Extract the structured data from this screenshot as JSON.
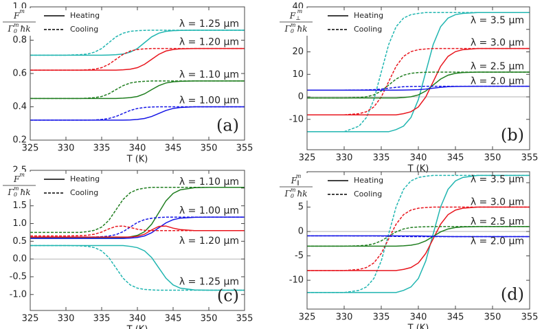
{
  "chart_data": [
    {
      "type": "line",
      "panel": "(a)",
      "xlabel": "T (K)",
      "ylabel": {
        "num_base": "F",
        "num_sup": "m",
        "den_base": "Γ",
        "den_sub": "0",
        "den_sup": "m",
        "den_rest": "ħk"
      },
      "legend": [
        "Heating",
        "Cooling"
      ],
      "zero_line": false,
      "xlim": [
        325,
        355
      ],
      "xticks": [
        325,
        330,
        335,
        340,
        345,
        350,
        355
      ],
      "ylim": [
        0.2,
        1.0
      ],
      "yticks": [
        0.2,
        0.4,
        0.6,
        0.8,
        {
          "value": 1.0,
          "label": "1.0"
        }
      ],
      "x": [
        325,
        330,
        332,
        333,
        334,
        335,
        336,
        337,
        338,
        339,
        340,
        341,
        342,
        343,
        344,
        345,
        346,
        348,
        350,
        355
      ],
      "series": [
        {
          "name": "λ = 1.25 μm",
          "color": "#1fb5b0",
          "heating": [
            0.71,
            0.71,
            0.71,
            0.71,
            0.71,
            0.71,
            0.711,
            0.713,
            0.717,
            0.728,
            0.75,
            0.785,
            0.82,
            0.842,
            0.853,
            0.857,
            0.859,
            0.86,
            0.86,
            0.86
          ],
          "cooling": [
            0.71,
            0.71,
            0.713,
            0.717,
            0.728,
            0.75,
            0.785,
            0.82,
            0.842,
            0.853,
            0.857,
            0.859,
            0.86,
            0.86,
            0.86,
            0.86,
            0.86,
            0.86,
            0.86,
            0.86
          ]
        },
        {
          "name": "λ = 1.20 μm",
          "color": "#e8141c",
          "heating": [
            0.62,
            0.62,
            0.62,
            0.62,
            0.62,
            0.62,
            0.62,
            0.62,
            0.622,
            0.626,
            0.635,
            0.655,
            0.685,
            0.715,
            0.735,
            0.744,
            0.748,
            0.75,
            0.75,
            0.75
          ],
          "cooling": [
            0.62,
            0.62,
            0.62,
            0.622,
            0.626,
            0.635,
            0.655,
            0.685,
            0.715,
            0.735,
            0.744,
            0.748,
            0.75,
            0.75,
            0.75,
            0.75,
            0.75,
            0.75,
            0.75,
            0.75
          ]
        },
        {
          "name": "λ = 1.10 μm",
          "color": "#1e7d1e",
          "heating": [
            0.45,
            0.45,
            0.45,
            0.45,
            0.45,
            0.45,
            0.45,
            0.45,
            0.452,
            0.455,
            0.462,
            0.478,
            0.503,
            0.527,
            0.543,
            0.55,
            0.553,
            0.555,
            0.555,
            0.555
          ],
          "cooling": [
            0.45,
            0.45,
            0.45,
            0.452,
            0.455,
            0.462,
            0.478,
            0.503,
            0.527,
            0.543,
            0.55,
            0.553,
            0.555,
            0.555,
            0.555,
            0.555,
            0.555,
            0.555,
            0.555,
            0.555
          ]
        },
        {
          "name": "λ = 1.00 μm",
          "color": "#1414e6",
          "heating": [
            0.32,
            0.32,
            0.32,
            0.32,
            0.32,
            0.32,
            0.32,
            0.32,
            0.32,
            0.321,
            0.324,
            0.33,
            0.342,
            0.36,
            0.378,
            0.39,
            0.396,
            0.4,
            0.4,
            0.4
          ],
          "cooling": [
            0.32,
            0.32,
            0.32,
            0.32,
            0.321,
            0.324,
            0.33,
            0.342,
            0.36,
            0.378,
            0.39,
            0.396,
            0.399,
            0.4,
            0.4,
            0.4,
            0.4,
            0.4,
            0.4,
            0.4
          ]
        }
      ]
    },
    {
      "type": "line",
      "panel": "(b)",
      "xlabel": "T (K)",
      "ylabel": {
        "num_base": "F",
        "num_sup": "m",
        "num_sub": "⊥",
        "den_base": "Γ",
        "den_sub": "0",
        "den_sup": "m",
        "den_rest": "ħk"
      },
      "legend": [
        "Heating",
        "Cooling"
      ],
      "zero_line": true,
      "xlim": [
        325,
        355
      ],
      "xticks": [
        325,
        330,
        335,
        340,
        345,
        350,
        355
      ],
      "ylim": [
        -23.5,
        40
      ],
      "yticks": [
        -10,
        0,
        10,
        20,
        30,
        40
      ],
      "x": [
        325,
        330,
        332,
        333,
        334,
        335,
        336,
        337,
        338,
        339,
        340,
        341,
        342,
        343,
        344,
        345,
        346,
        348,
        350,
        355
      ],
      "series": [
        {
          "name": "λ = 3.5 μm",
          "color": "#1fb5b0",
          "heating": [
            -15.5,
            -15.5,
            -15.5,
            -15.5,
            -15.5,
            -15.5,
            -15.5,
            -14.55,
            -13.01,
            -9.19,
            -1.24,
            11,
            23.24,
            31.19,
            35.01,
            36.55,
            37.1,
            37.5,
            37.5,
            37.5
          ],
          "cooling": [
            -15.5,
            -15.5,
            -13.01,
            -9.19,
            -1.24,
            11,
            23.24,
            31.19,
            35.01,
            36.55,
            37.1,
            37.5,
            37.5,
            37.5,
            37.5,
            37.5,
            37.5,
            37.5,
            37.5,
            37.5
          ]
        },
        {
          "name": "λ = 3.0 μm",
          "color": "#e8141c",
          "heating": [
            -8,
            -8,
            -8,
            -8,
            -8,
            -8,
            -8,
            -8,
            -7.47,
            -6.61,
            -4.49,
            -0.06,
            6.75,
            13.56,
            17.99,
            20.11,
            20.97,
            21.5,
            21.5,
            21.5
          ],
          "cooling": [
            -8,
            -8,
            -7.47,
            -6.61,
            -4.49,
            -0.06,
            6.75,
            13.56,
            17.99,
            20.11,
            20.97,
            21.29,
            21.5,
            21.5,
            21.5,
            21.5,
            21.5,
            21.5,
            21.5,
            21.5
          ]
        },
        {
          "name": "λ = 2.5 μm",
          "color": "#1e7d1e",
          "heating": [
            -0.5,
            -0.5,
            -0.5,
            -0.5,
            -0.5,
            -0.5,
            -0.5,
            -0.5,
            -0.29,
            0.04,
            0.87,
            2.59,
            5.25,
            7.91,
            9.63,
            10.46,
            10.79,
            11,
            11,
            11
          ],
          "cooling": [
            -0.5,
            -0.5,
            -0.29,
            0.04,
            0.87,
            2.59,
            5.25,
            7.91,
            9.63,
            10.46,
            10.79,
            10.92,
            11,
            11,
            11,
            11,
            11,
            11,
            11,
            11
          ]
        },
        {
          "name": "λ = 2.0 μm",
          "color": "#1414e6",
          "heating": [
            3,
            3,
            3,
            3,
            3,
            3,
            3,
            3,
            3.03,
            3.08,
            3.2,
            3.46,
            3.85,
            4.24,
            4.5,
            4.62,
            4.67,
            4.7,
            4.7,
            4.7
          ],
          "cooling": [
            3,
            3,
            3.03,
            3.08,
            3.2,
            3.46,
            3.85,
            4.24,
            4.5,
            4.62,
            4.67,
            4.69,
            4.7,
            4.7,
            4.7,
            4.7,
            4.7,
            4.7,
            4.7,
            4.7
          ]
        }
      ]
    },
    {
      "type": "line",
      "panel": "(c)",
      "xlabel": "T (K)",
      "ylabel": {
        "num_base": "F",
        "num_sup": "m",
        "den_base": "Γ",
        "den_sub": "0",
        "den_sup": "m",
        "den_rest": "ħk"
      },
      "legend": [
        "Heating",
        "Cooling"
      ],
      "zero_line": true,
      "xlim": [
        325,
        355
      ],
      "xticks": [
        325,
        330,
        335,
        340,
        345,
        350,
        355
      ],
      "ylim": [
        -1.45,
        2.5
      ],
      "yticks": [
        {
          "value": -1.0,
          "label": "-1.0"
        },
        -0.5,
        {
          "value": 0,
          "label": "0.0"
        },
        0.5,
        {
          "value": 1.0,
          "label": "1.0"
        },
        1.5,
        {
          "value": 2.0,
          "label": "2.0"
        },
        2.5
      ],
      "x": [
        325,
        330,
        332,
        333,
        334,
        335,
        336,
        337,
        338,
        339,
        340,
        341,
        342,
        343,
        344,
        345,
        346,
        348,
        350,
        355
      ],
      "series": [
        {
          "name": "λ = 1.10 μm",
          "color": "#1e7d1e",
          "heating": [
            0.6,
            0.6,
            0.6,
            0.6,
            0.6,
            0.6,
            0.6,
            0.6,
            0.6,
            0.626,
            0.667,
            0.769,
            0.982,
            1.31,
            1.64,
            1.85,
            1.95,
            2.01,
            2.02,
            2.02
          ],
          "cooling": [
            0.75,
            0.75,
            0.75,
            0.773,
            0.81,
            0.9,
            1.09,
            1.385,
            1.68,
            1.87,
            1.96,
            2.0,
            2.02,
            2.02,
            2.02,
            2.02,
            2.02,
            2.02,
            2.02,
            2.02
          ]
        },
        {
          "name": "λ = 1.00 μm",
          "color": "#1414e6",
          "heating": [
            0.58,
            0.58,
            0.58,
            0.58,
            0.58,
            0.58,
            0.58,
            0.58,
            0.58,
            0.591,
            0.608,
            0.651,
            0.741,
            0.88,
            1.019,
            1.109,
            1.152,
            1.176,
            1.18,
            1.18
          ],
          "cooling": [
            0.62,
            0.62,
            0.62,
            0.62,
            0.62,
            0.63,
            0.646,
            0.687,
            0.771,
            0.9,
            1.03,
            1.11,
            1.15,
            1.17,
            1.18,
            1.18,
            1.18,
            1.18,
            1.18,
            1.18
          ]
        },
        {
          "name": "λ = 1.20 μm",
          "color": "#e8141c",
          "heating": [
            0.62,
            0.62,
            0.62,
            0.62,
            0.62,
            0.62,
            0.62,
            0.62,
            0.62,
            0.62,
            0.64,
            0.7,
            0.82,
            0.92,
            0.93,
            0.87,
            0.83,
            0.8,
            0.8,
            0.8
          ],
          "cooling": [
            0.65,
            0.65,
            0.66,
            0.67,
            0.7,
            0.76,
            0.85,
            0.92,
            0.93,
            0.89,
            0.84,
            0.81,
            0.8,
            0.8,
            0.8,
            0.8,
            0.8,
            0.8,
            0.8,
            0.8
          ]
        },
        {
          "name": "λ = 1.25 μm",
          "color": "#1fb5b0",
          "heating": [
            0.38,
            0.38,
            0.38,
            0.38,
            0.38,
            0.38,
            0.38,
            0.38,
            0.38,
            0.357,
            0.321,
            0.23,
            0.041,
            -0.25,
            -0.541,
            -0.73,
            -0.821,
            -0.871,
            -0.88,
            -0.88
          ],
          "cooling": [
            0.38,
            0.38,
            0.371,
            0.357,
            0.321,
            0.23,
            0.041,
            -0.25,
            -0.541,
            -0.73,
            -0.821,
            -0.857,
            -0.871,
            -0.88,
            -0.88,
            -0.88,
            -0.88,
            -0.88,
            -0.88,
            -0.88
          ]
        }
      ]
    },
    {
      "type": "line",
      "panel": "(d)",
      "xlabel": "T (K)",
      "ylabel": {
        "num_base": "F",
        "num_sup": "m",
        "num_sub": "∥",
        "den_base": "Γ",
        "den_sub": "0",
        "den_sup": "m",
        "den_rest": "ħk"
      },
      "legend": [
        "Heating",
        "Cooling"
      ],
      "zero_line": true,
      "xlim": [
        325,
        355
      ],
      "xticks": [
        325,
        330,
        335,
        340,
        345,
        350,
        355
      ],
      "ylim": [
        -15.9,
        12.25
      ],
      "yticks": [
        -10,
        -5,
        0,
        5,
        10
      ],
      "x": [
        325,
        330,
        332,
        333,
        334,
        335,
        336,
        337,
        338,
        339,
        340,
        341,
        342,
        343,
        344,
        345,
        346,
        348,
        350,
        355
      ],
      "series": [
        {
          "name": "λ = 3.5 μm",
          "color": "#1fb5b0",
          "heating": [
            -12.5,
            -12.5,
            -12.5,
            -12.5,
            -12.5,
            -12.5,
            -12.5,
            -12.5,
            -12.07,
            -11.37,
            -9.64,
            -6.04,
            -0.5,
            5.04,
            8.64,
            10.37,
            11.07,
            11.5,
            11.5,
            11.5
          ],
          "cooling": [
            -12.5,
            -12.5,
            -12.07,
            -11.37,
            -9.64,
            -6.04,
            -0.5,
            5.04,
            8.64,
            10.37,
            11.07,
            11.33,
            11.5,
            11.5,
            11.5,
            11.5,
            11.5,
            11.5,
            11.5,
            11.5
          ]
        },
        {
          "name": "λ = 3.0 μm",
          "color": "#e8141c",
          "heating": [
            -8,
            -8,
            -8,
            -8,
            -8,
            -8,
            -8,
            -8,
            -7.77,
            -7.39,
            -6.45,
            -4.5,
            -1.5,
            1.5,
            3.45,
            4.39,
            4.77,
            5,
            5,
            5
          ],
          "cooling": [
            -8,
            -8,
            -7.77,
            -7.39,
            -6.45,
            -4.5,
            -1.5,
            1.5,
            3.45,
            4.39,
            4.77,
            4.91,
            5,
            5,
            5,
            5,
            5,
            5,
            5,
            5
          ]
        },
        {
          "name": "λ = 2.5 μm",
          "color": "#1e7d1e",
          "heating": [
            -3,
            -3,
            -3,
            -3,
            -3,
            -3,
            -3,
            -3,
            -2.93,
            -2.81,
            -2.52,
            -1.92,
            -1,
            -0.08,
            0.52,
            0.81,
            0.93,
            1,
            1,
            1
          ],
          "cooling": [
            -3,
            -3,
            -2.93,
            -2.81,
            -2.52,
            -1.92,
            -1,
            -0.08,
            0.52,
            0.81,
            0.93,
            0.97,
            1,
            1,
            1,
            1,
            1,
            1,
            1,
            1
          ]
        },
        {
          "name": "λ = 2.0 μm",
          "color": "#1414e6",
          "heating": [
            -0.9,
            -0.9,
            -0.9,
            -0.9,
            -0.9,
            -0.9,
            -0.9,
            -0.9,
            -0.903,
            -0.907,
            -0.918,
            -0.94,
            -0.975,
            -1.01,
            -1.032,
            -1.043,
            -1.047,
            -1.05,
            -1.05,
            -1.05
          ],
          "cooling": [
            -0.9,
            -0.9,
            -0.903,
            -0.907,
            -0.918,
            -0.94,
            -0.975,
            -1.01,
            -1.032,
            -1.043,
            -1.047,
            -1.049,
            -1.05,
            -1.05,
            -1.05,
            -1.05,
            -1.05,
            -1.05,
            -1.05,
            -1.05
          ]
        }
      ]
    }
  ]
}
